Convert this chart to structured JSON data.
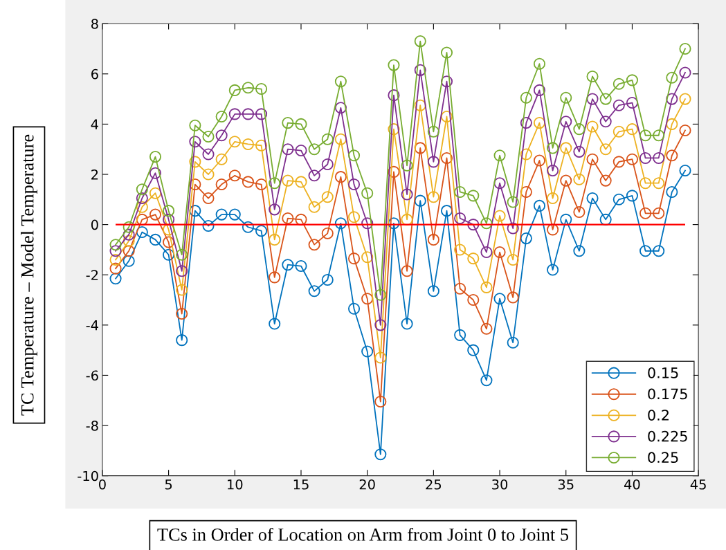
{
  "chart_data": {
    "type": "line",
    "xlabel": "TCs in Order of Location on Arm from Joint 0 to Joint 5",
    "ylabel": "TC Temperature – Model Temperature",
    "x": [
      1,
      2,
      3,
      4,
      5,
      6,
      7,
      8,
      9,
      10,
      11,
      12,
      13,
      14,
      15,
      16,
      17,
      18,
      19,
      20,
      21,
      22,
      23,
      24,
      25,
      26,
      27,
      28,
      29,
      30,
      31,
      32,
      33,
      34,
      35,
      36,
      37,
      38,
      39,
      40,
      41,
      42,
      43,
      44
    ],
    "series": [
      {
        "name": "0.15",
        "color": "#0072bd",
        "values": [
          -2.15,
          -1.45,
          -0.3,
          -0.6,
          -1.2,
          -4.6,
          0.55,
          -0.05,
          0.4,
          0.4,
          -0.1,
          -0.25,
          -3.95,
          -1.6,
          -1.65,
          -2.65,
          -2.2,
          0.05,
          -3.35,
          -5.05,
          -9.15,
          0.05,
          -3.95,
          0.95,
          -2.65,
          0.55,
          -4.4,
          -5.0,
          -6.2,
          -2.95,
          -4.7,
          -0.55,
          0.75,
          -1.8,
          0.2,
          -1.05,
          1.05,
          0.2,
          1.0,
          1.15,
          -1.05,
          -1.05,
          1.3,
          2.15
        ]
      },
      {
        "name": "0.175",
        "color": "#d95319",
        "values": [
          -1.75,
          -1.05,
          0.2,
          0.4,
          -0.7,
          -3.55,
          1.6,
          1.05,
          1.6,
          1.95,
          1.7,
          1.6,
          -2.1,
          0.25,
          0.2,
          -0.8,
          -0.35,
          1.9,
          -1.35,
          -2.95,
          -7.05,
          2.1,
          -1.85,
          3.05,
          -0.6,
          2.65,
          -2.55,
          -3.0,
          -4.15,
          -1.1,
          -2.9,
          1.3,
          2.55,
          -0.2,
          1.75,
          0.5,
          2.6,
          1.75,
          2.5,
          2.6,
          0.45,
          0.45,
          2.75,
          3.75
        ]
      },
      {
        "name": "0.2",
        "color": "#edb120",
        "values": [
          -1.4,
          -0.65,
          0.7,
          1.25,
          -0.2,
          -2.6,
          2.5,
          2.0,
          2.6,
          3.3,
          3.2,
          3.15,
          -0.6,
          1.75,
          1.7,
          0.7,
          1.1,
          3.4,
          0.3,
          -1.3,
          -5.3,
          3.8,
          0.2,
          4.75,
          1.1,
          4.3,
          -1.0,
          -1.35,
          -2.5,
          0.35,
          -1.4,
          2.8,
          4.05,
          1.05,
          3.05,
          1.8,
          3.9,
          3.0,
          3.7,
          3.8,
          1.65,
          1.65,
          4.0,
          5.0
        ]
      },
      {
        "name": "0.225",
        "color": "#7e2f8e",
        "values": [
          -1.05,
          -0.4,
          1.05,
          2.05,
          0.2,
          -1.85,
          3.3,
          2.8,
          3.55,
          4.4,
          4.4,
          4.4,
          0.6,
          3.0,
          2.95,
          1.95,
          2.4,
          4.65,
          1.6,
          0.05,
          -4.0,
          5.15,
          1.2,
          6.15,
          2.5,
          5.7,
          0.25,
          0.0,
          -1.1,
          1.65,
          -0.15,
          4.05,
          5.35,
          2.15,
          4.1,
          2.9,
          5.0,
          4.1,
          4.75,
          4.85,
          2.65,
          2.65,
          5.0,
          6.05
        ]
      },
      {
        "name": "0.25",
        "color": "#77ac30",
        "values": [
          -0.8,
          -0.1,
          1.4,
          2.7,
          0.55,
          -1.2,
          3.95,
          3.5,
          4.3,
          5.35,
          5.45,
          5.4,
          1.65,
          4.05,
          4.0,
          3.0,
          3.4,
          5.7,
          2.75,
          1.25,
          -2.8,
          6.35,
          2.35,
          7.3,
          3.7,
          6.85,
          1.3,
          1.15,
          0.05,
          2.75,
          0.9,
          5.05,
          6.4,
          3.05,
          5.05,
          3.8,
          5.9,
          5.0,
          5.6,
          5.75,
          3.55,
          3.55,
          5.85,
          7.0
        ]
      }
    ],
    "ref_lines": [
      {
        "axis": "y",
        "value": 0,
        "color": "#ff0000"
      }
    ],
    "xlim": [
      0,
      45
    ],
    "xticks": [
      0,
      5,
      10,
      15,
      20,
      25,
      30,
      35,
      40,
      45
    ],
    "ylim": [
      -10,
      8
    ],
    "yticks": [
      {
        "value": -10,
        "label": "-10"
      },
      {
        "value": -8,
        "label": "-8"
      },
      {
        "value": -6,
        "label": "-6"
      },
      {
        "value": -4,
        "label": "-4"
      },
      {
        "value": -2,
        "label": "-2"
      },
      0,
      2,
      4,
      6,
      8
    ],
    "marker": "circle",
    "line_style": "solid",
    "grid": false,
    "legend": "bottom right"
  }
}
